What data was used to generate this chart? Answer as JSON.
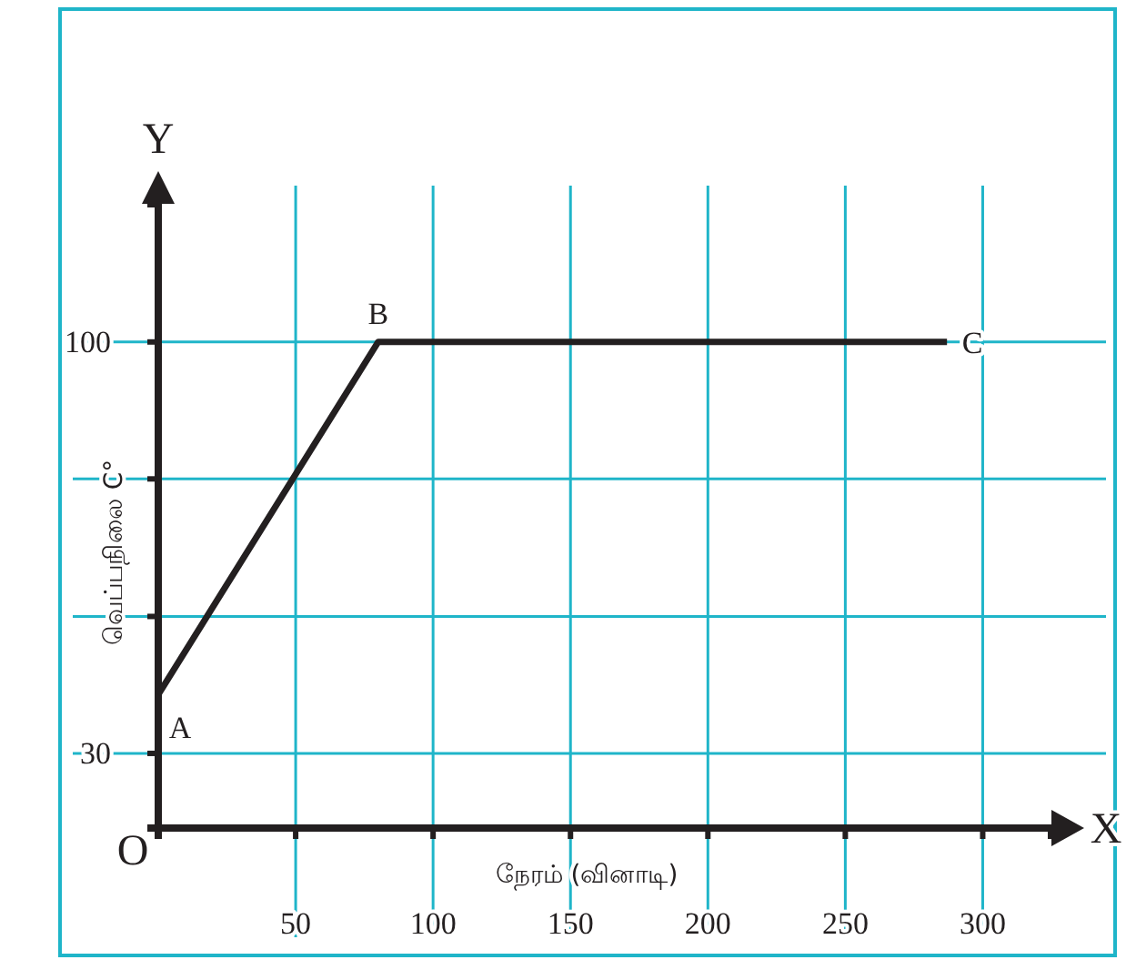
{
  "chart_data": {
    "type": "line",
    "xlabel": "நேரம் (வினாடி)",
    "ylabel": "வெப்பநிலை C°",
    "x": [
      0,
      80,
      287
    ],
    "series": [
      {
        "color": "#231f20",
        "values": [
          40,
          100,
          100
        ]
      }
    ],
    "xlim": [
      0,
      325
    ],
    "ylim": [
      17.3,
      123.5
    ],
    "xticks": [
      50,
      100,
      150,
      200,
      250,
      300
    ],
    "yticks": [
      30,
      {
        "value": 53.3,
        "label": null
      },
      {
        "value": 76.7,
        "label": null
      },
      100
    ],
    "grid": true,
    "marker": "none",
    "line_style": "solid",
    "annotations": [
      {
        "text": "A",
        "x": 0,
        "y": 40
      },
      {
        "text": "B",
        "x": 80,
        "y": 100
      },
      {
        "text": "C",
        "x": 287,
        "y": 100
      },
      "O",
      "X",
      "Y"
    ]
  }
}
